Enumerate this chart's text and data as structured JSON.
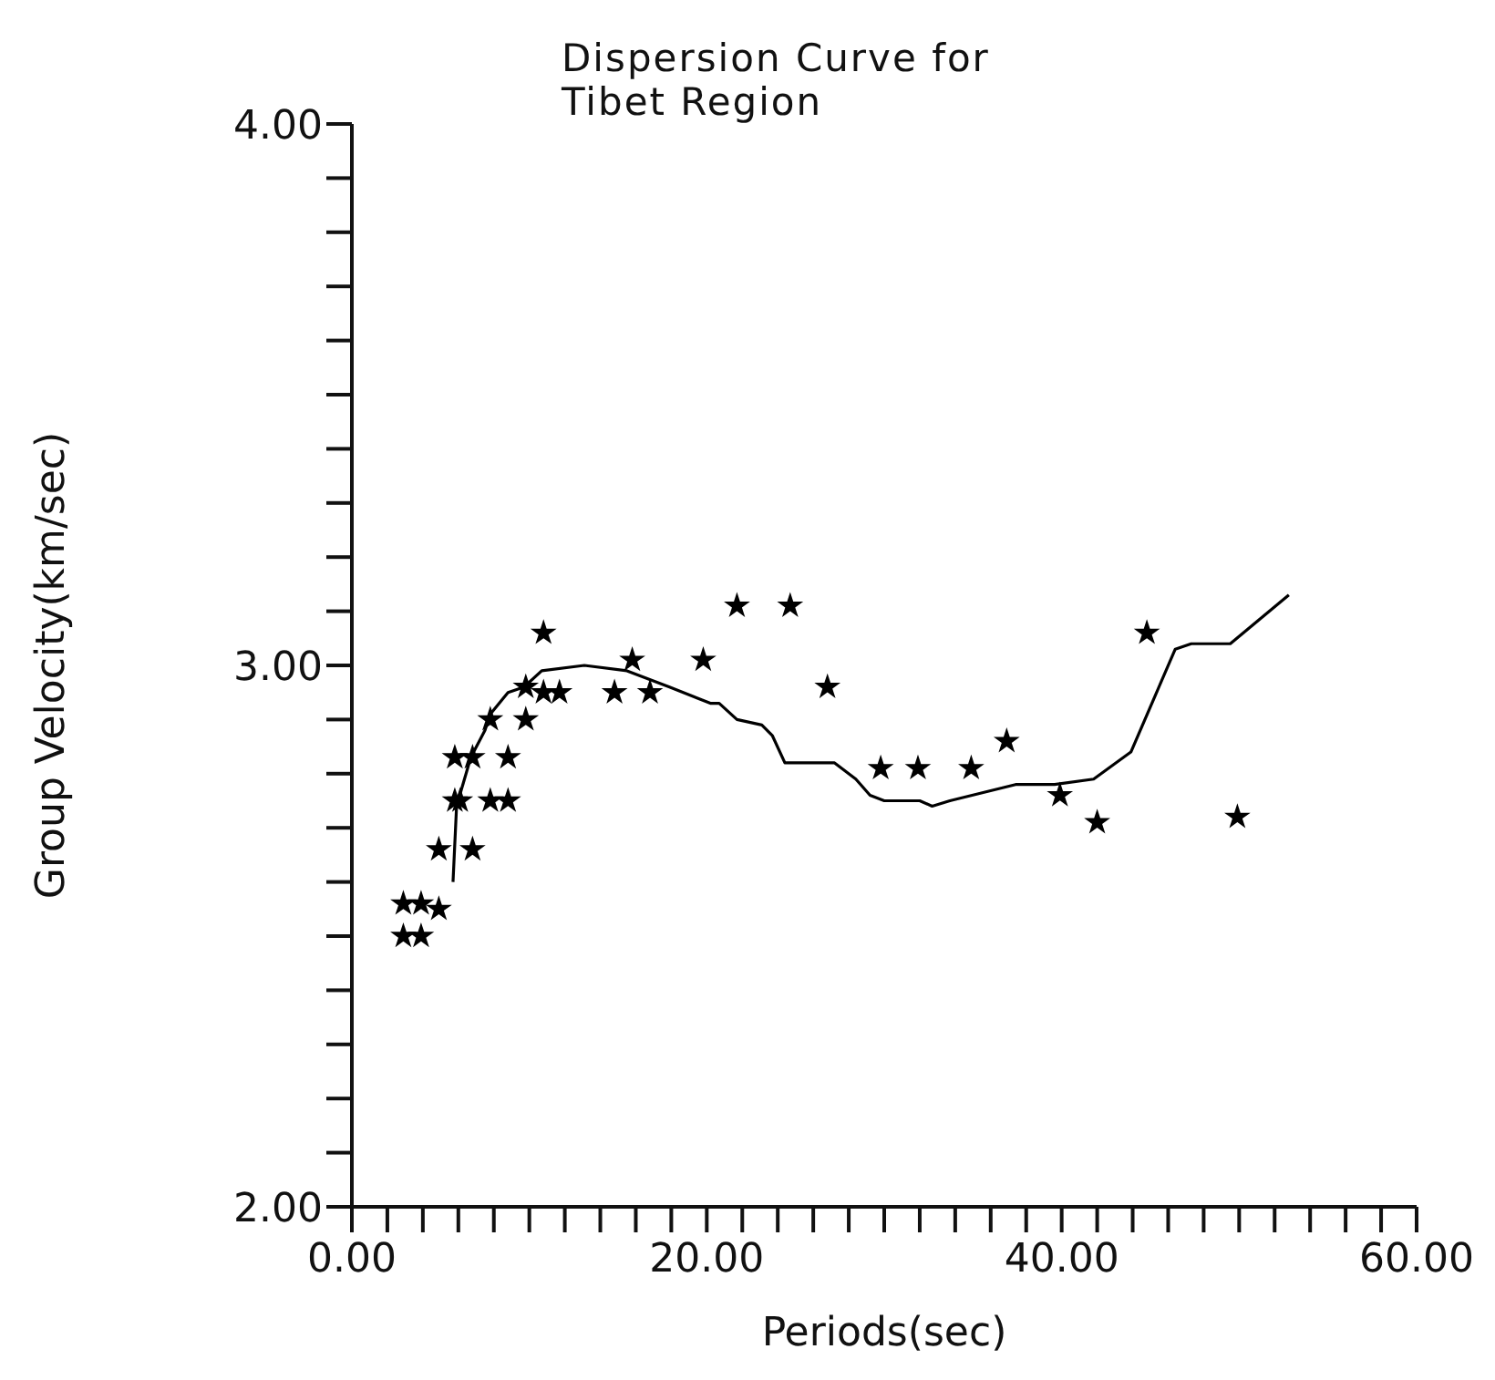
{
  "chart_data": {
    "type": "scatter",
    "title": "Dispersion Curve for Tibet Region",
    "xlabel": "Periods(sec)",
    "ylabel": "Group Velocity(km/sec)",
    "xlim": [
      0,
      60
    ],
    "ylim": [
      2,
      4
    ],
    "xticks": [
      {
        "value": 0,
        "label": "0.00"
      },
      {
        "value": 2,
        "label": null
      },
      {
        "value": 4,
        "label": null
      },
      {
        "value": 6,
        "label": null
      },
      {
        "value": 8,
        "label": null
      },
      {
        "value": 10,
        "label": null
      },
      {
        "value": 12,
        "label": null
      },
      {
        "value": 14,
        "label": null
      },
      {
        "value": 16,
        "label": null
      },
      {
        "value": 18,
        "label": null
      },
      {
        "value": 20,
        "label": "20.00"
      },
      {
        "value": 22,
        "label": null
      },
      {
        "value": 24,
        "label": null
      },
      {
        "value": 26,
        "label": null
      },
      {
        "value": 28,
        "label": null
      },
      {
        "value": 30,
        "label": null
      },
      {
        "value": 32,
        "label": null
      },
      {
        "value": 34,
        "label": null
      },
      {
        "value": 36,
        "label": null
      },
      {
        "value": 38,
        "label": null
      },
      {
        "value": 40,
        "label": "40.00"
      },
      {
        "value": 42,
        "label": null
      },
      {
        "value": 44,
        "label": null
      },
      {
        "value": 46,
        "label": null
      },
      {
        "value": 48,
        "label": null
      },
      {
        "value": 50,
        "label": null
      },
      {
        "value": 52,
        "label": null
      },
      {
        "value": 54,
        "label": null
      },
      {
        "value": 56,
        "label": null
      },
      {
        "value": 58,
        "label": null
      },
      {
        "value": 60,
        "label": "60.00"
      }
    ],
    "yticks": [
      {
        "value": 2,
        "label": "2.00"
      },
      {
        "value": 2.1,
        "label": null
      },
      {
        "value": 2.2,
        "label": null
      },
      {
        "value": 2.3,
        "label": null
      },
      {
        "value": 2.4,
        "label": null
      },
      {
        "value": 2.5,
        "label": null
      },
      {
        "value": 2.6,
        "label": null
      },
      {
        "value": 2.7,
        "label": null
      },
      {
        "value": 2.8,
        "label": null
      },
      {
        "value": 2.9,
        "label": null
      },
      {
        "value": 3,
        "label": "3.00"
      },
      {
        "value": 3.1,
        "label": null
      },
      {
        "value": 3.2,
        "label": null
      },
      {
        "value": 3.3,
        "label": null
      },
      {
        "value": 3.4,
        "label": null
      },
      {
        "value": 3.5,
        "label": null
      },
      {
        "value": 3.6,
        "label": null
      },
      {
        "value": 3.7,
        "label": null
      },
      {
        "value": 3.8,
        "label": null
      },
      {
        "value": 3.9,
        "label": null
      },
      {
        "value": 4,
        "label": "4.00"
      }
    ],
    "grid": false,
    "series": [
      {
        "marker": "star",
        "color": "#000000",
        "x": [
          2.9,
          3.9,
          2.9,
          3.9,
          4.9,
          4.9,
          5.8,
          6.8,
          5.8,
          6.1,
          6.8,
          7.8,
          8.8,
          8.8,
          7.8,
          9.8,
          9.8,
          10.8,
          11.7,
          10.8,
          14.8,
          15.8,
          16.8,
          19.8,
          21.7,
          24.7,
          26.8,
          29.8,
          31.9,
          34.9,
          36.9,
          39.9,
          42.0,
          44.8,
          49.9
        ],
        "values": [
          2.56,
          2.56,
          2.5,
          2.5,
          2.55,
          2.66,
          2.83,
          2.83,
          2.75,
          2.75,
          2.66,
          2.75,
          2.75,
          2.83,
          2.9,
          2.9,
          2.96,
          2.95,
          2.95,
          3.06,
          2.95,
          3.01,
          2.95,
          3.01,
          3.11,
          3.11,
          2.96,
          2.81,
          2.81,
          2.81,
          2.86,
          2.76,
          2.71,
          3.06,
          2.72
        ]
      },
      {
        "type": "line",
        "marker": "none",
        "line_style": "solid",
        "color": "#000000",
        "x": [
          5.7,
          5.9,
          6.7,
          7.5,
          7.8,
          8.8,
          9.7,
          10.7,
          13.1,
          15.5,
          17.9,
          20.2,
          20.7,
          21.7,
          23.1,
          23.7,
          24.4,
          27.2,
          28.4,
          29.2,
          30.0,
          32.0,
          32.7,
          33.7,
          37.4,
          39.6,
          41.8,
          43.9,
          46.4,
          47.3,
          49.5,
          52.8
        ],
        "values": [
          2.6,
          2.74,
          2.83,
          2.88,
          2.91,
          2.95,
          2.96,
          2.99,
          3.0,
          2.99,
          2.96,
          2.93,
          2.93,
          2.9,
          2.89,
          2.87,
          2.82,
          2.82,
          2.79,
          2.76,
          2.75,
          2.75,
          2.74,
          2.75,
          2.78,
          2.78,
          2.79,
          2.84,
          3.03,
          3.04,
          3.04,
          3.13
        ]
      }
    ]
  }
}
